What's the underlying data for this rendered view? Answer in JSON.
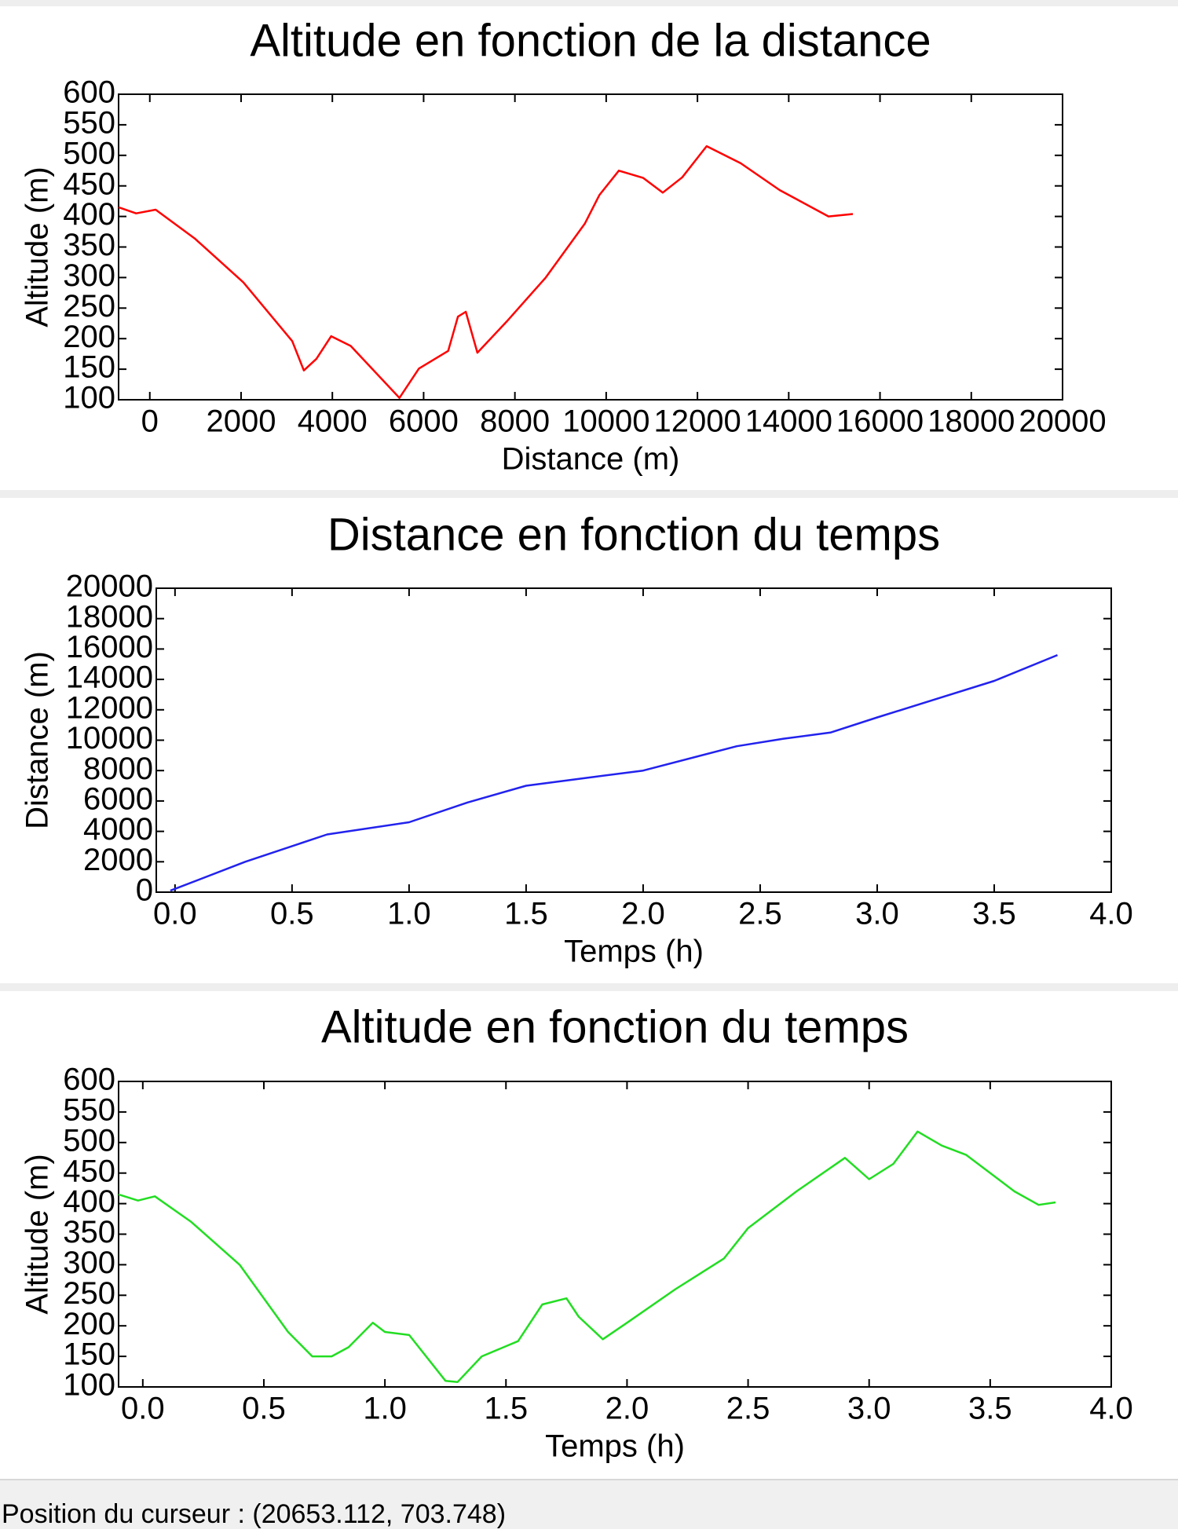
{
  "chart_data": [
    {
      "type": "line",
      "title": "Altitude en fonction de la distance",
      "xlabel": "Distance (m)",
      "ylabel": "Altitude (m)",
      "color": "#ff0000",
      "x": [
        -684,
        -300,
        128,
        983,
        2051,
        3120,
        3376,
        3650,
        3974,
        4402,
        5470,
        5897,
        6538,
        6752,
        6923,
        7179,
        7820,
        8675,
        9530,
        9850,
        10278,
        10812,
        11239,
        11667,
        12201,
        12949,
        13803,
        14872,
        15406
      ],
      "values": [
        415,
        405,
        411,
        364,
        292,
        196,
        148,
        167,
        204,
        188,
        103,
        151,
        180,
        236,
        244,
        177,
        228,
        300,
        388,
        435,
        475,
        463,
        439,
        464,
        515,
        487,
        443,
        400,
        404
      ],
      "xlim": [
        -684,
        20000
      ],
      "xticks": [
        0,
        2000,
        4000,
        6000,
        8000,
        10000,
        12000,
        14000,
        16000,
        18000,
        20000
      ],
      "ylim": [
        100,
        600
      ],
      "yticks": [
        100,
        150,
        200,
        250,
        300,
        350,
        400,
        450,
        500,
        550,
        600
      ]
    },
    {
      "type": "line",
      "title": "Distance en fonction du temps",
      "xlabel": "Temps (h)",
      "ylabel": "Distance (m)",
      "color": "#2222ee",
      "x": [
        -0.02,
        0.3,
        0.65,
        1.0,
        1.25,
        1.5,
        1.8,
        2.0,
        2.4,
        2.6,
        2.8,
        3.0,
        3.5,
        3.77
      ],
      "values": [
        100,
        2000,
        3800,
        4600,
        5900,
        7000,
        7600,
        8000,
        9600,
        10100,
        10500,
        11500,
        13900,
        15600
      ],
      "xlim": [
        -0.08,
        4.0
      ],
      "xticks": [
        {
          "value": 0,
          "label": "0.0"
        },
        0.5,
        {
          "value": 1,
          "label": "1.0"
        },
        1.5,
        {
          "value": 2,
          "label": "2.0"
        },
        2.5,
        {
          "value": 3,
          "label": "3.0"
        },
        3.5,
        {
          "value": 4,
          "label": "4.0"
        }
      ],
      "ylim": [
        0,
        20000
      ],
      "yticks": [
        0,
        2000,
        4000,
        6000,
        8000,
        10000,
        12000,
        14000,
        16000,
        18000,
        20000
      ]
    },
    {
      "type": "line",
      "title": "Altitude en fonction du temps",
      "xlabel": "Temps (h)",
      "ylabel": "Altitude (m)",
      "color": "#22dd22",
      "x": [
        -0.1,
        -0.02,
        0.05,
        0.2,
        0.4,
        0.6,
        0.7,
        0.78,
        0.85,
        0.95,
        1.0,
        1.1,
        1.25,
        1.3,
        1.4,
        1.55,
        1.65,
        1.75,
        1.8,
        1.9,
        2.0,
        2.2,
        2.4,
        2.5,
        2.7,
        2.9,
        3.0,
        3.1,
        3.2,
        3.3,
        3.4,
        3.6,
        3.7,
        3.77
      ],
      "values": [
        415,
        405,
        412,
        370,
        300,
        190,
        150,
        150,
        165,
        205,
        190,
        185,
        110,
        108,
        150,
        175,
        235,
        245,
        215,
        178,
        205,
        260,
        310,
        360,
        420,
        475,
        440,
        465,
        518,
        495,
        480,
        420,
        398,
        402
      ],
      "xlim": [
        -0.1,
        4.0
      ],
      "xticks": [
        {
          "value": 0,
          "label": "0.0"
        },
        0.5,
        {
          "value": 1,
          "label": "1.0"
        },
        1.5,
        {
          "value": 2,
          "label": "2.0"
        },
        2.5,
        {
          "value": 3,
          "label": "3.0"
        },
        3.5,
        {
          "value": 4,
          "label": "4.0"
        }
      ],
      "ylim": [
        100,
        600
      ],
      "yticks": [
        100,
        150,
        200,
        250,
        300,
        350,
        400,
        450,
        500,
        550,
        600
      ]
    }
  ],
  "status_bar": {
    "text": "Position du curseur : (20653.112, 703.748)"
  }
}
